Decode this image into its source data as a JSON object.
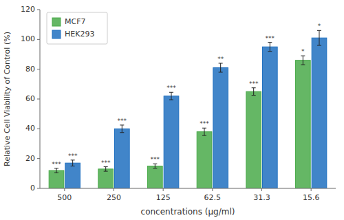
{
  "chart_data": {
    "type": "bar",
    "categories": [
      "500",
      "250",
      "125",
      "62.5",
      "31.3",
      "15.6"
    ],
    "series": [
      {
        "name": "MCF7",
        "color": "#4aaa4a",
        "values": [
          12,
          13,
          15,
          38,
          65,
          86
        ],
        "errors": [
          1.5,
          1.5,
          1.5,
          2.5,
          2.5,
          3.0
        ],
        "significance": [
          "***",
          "***",
          "***",
          "***",
          "***",
          "*"
        ]
      },
      {
        "name": "HEK293",
        "color": "#2070c0",
        "values": [
          17,
          40,
          62,
          81,
          95,
          101
        ],
        "errors": [
          2.0,
          2.5,
          2.5,
          3.0,
          3.0,
          5.0
        ],
        "significance": [
          "***",
          "***",
          "***",
          "**",
          "***",
          "*"
        ]
      }
    ],
    "xlabel": "concentrations (μg/ml)",
    "ylabel": "Relative Cell Viability of Control (%)",
    "ylim": [
      0,
      120
    ],
    "yticks": [
      0,
      20,
      40,
      60,
      80,
      100,
      120
    ],
    "legend": "upper left"
  }
}
